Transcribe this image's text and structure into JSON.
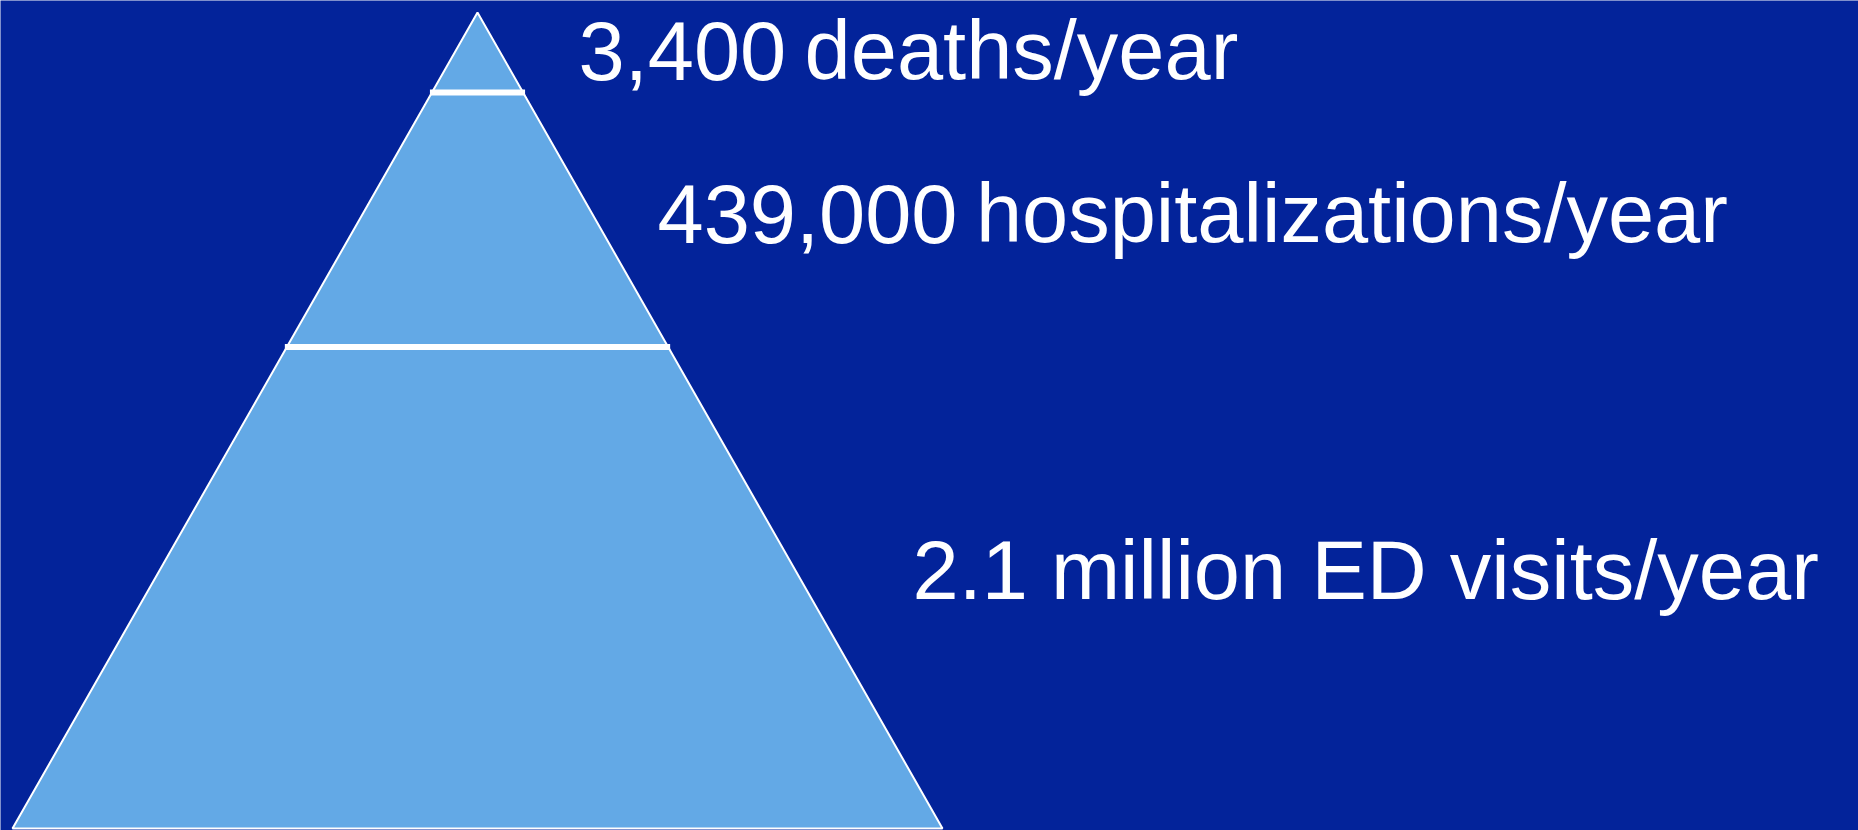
{
  "chart_data": {
    "type": "other",
    "categories": [
      "deaths/year",
      "hospitalizations/year",
      "ED visits/year"
    ],
    "values": [
      3400,
      439000,
      2100000
    ],
    "value_labels": [
      "3,400",
      "439,000",
      "2.1 million"
    ],
    "colors": [
      "#63a9e6",
      "#63a9e6",
      "#63a9e6"
    ]
  }
}
